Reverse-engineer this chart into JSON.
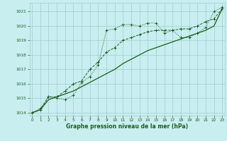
{
  "xlabel": "Graphe pression niveau de la mer (hPa)",
  "bg_color": "#c8eef0",
  "grid_color": "#9ecece",
  "line_color": "#1a5c1a",
  "hours": [
    0,
    1,
    2,
    3,
    4,
    5,
    6,
    7,
    8,
    9,
    10,
    11,
    12,
    13,
    14,
    15,
    16,
    17,
    18,
    19,
    20,
    21,
    22,
    23
  ],
  "series1": [
    1014.0,
    1014.3,
    1015.1,
    1015.0,
    1014.9,
    1015.2,
    1016.1,
    1016.5,
    1017.3,
    1019.7,
    1019.8,
    1020.1,
    1020.1,
    1020.0,
    1020.2,
    1020.2,
    1019.5,
    1019.7,
    1019.2,
    1019.2,
    1019.5,
    1019.9,
    1021.0,
    1021.3
  ],
  "series2": [
    1014.0,
    1014.2,
    1015.1,
    1015.1,
    1015.5,
    1016.0,
    1016.2,
    1017.0,
    1017.5,
    1018.2,
    1018.5,
    1019.0,
    1019.2,
    1019.4,
    1019.6,
    1019.7,
    1019.7,
    1019.7,
    1019.8,
    1019.8,
    1020.0,
    1020.3,
    1020.5,
    1021.2
  ],
  "series3": [
    1014.0,
    1014.2,
    1014.9,
    1015.1,
    1015.3,
    1015.5,
    1015.8,
    1016.1,
    1016.4,
    1016.7,
    1017.0,
    1017.4,
    1017.7,
    1018.0,
    1018.3,
    1018.5,
    1018.7,
    1018.9,
    1019.1,
    1019.3,
    1019.5,
    1019.7,
    1020.0,
    1021.2
  ],
  "ylim": [
    1013.8,
    1021.6
  ],
  "yticks": [
    1014,
    1015,
    1016,
    1017,
    1018,
    1019,
    1020,
    1021
  ],
  "xticks": [
    0,
    1,
    2,
    3,
    4,
    5,
    6,
    7,
    8,
    9,
    10,
    11,
    12,
    13,
    14,
    15,
    16,
    17,
    18,
    19,
    20,
    21,
    22,
    23
  ]
}
